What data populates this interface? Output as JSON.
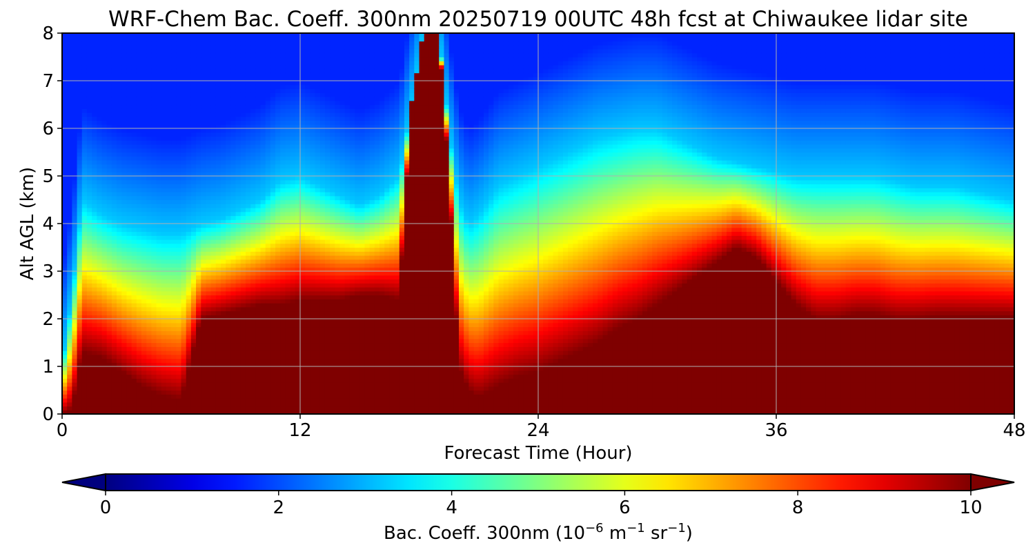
{
  "chart_data": {
    "type": "heatmap",
    "title": "WRF-Chem Bac. Coeff. 300nm  20250719 00UTC 48h fcst at Chiwaukee lidar site",
    "xlabel": "Forecast Time (Hour)",
    "ylabel": "Alt AGL (km)",
    "xlim": [
      0,
      48
    ],
    "ylim": [
      0,
      8
    ],
    "x_ticks": [
      0,
      12,
      24,
      36,
      48
    ],
    "y_ticks": [
      0,
      1,
      2,
      3,
      4,
      5,
      6,
      7,
      8
    ],
    "grid": true,
    "colormap": "jet",
    "colorbar": {
      "orientation": "horizontal",
      "placement": "bottom",
      "label_main": "Bac. Coeff. 300nm  (10",
      "label_exp1": "−6",
      "label_mid": " m",
      "label_exp2": "−1",
      "label_end": " sr",
      "label_exp3": "−1",
      "label_close": ")",
      "range": [
        0,
        10
      ],
      "extend": "both",
      "ticks": [
        0,
        2,
        4,
        6,
        8,
        10
      ]
    },
    "x_hours": [
      0,
      0.5,
      1,
      2,
      3,
      4,
      5,
      6,
      7,
      8,
      9,
      10,
      11,
      12,
      13,
      14,
      15,
      16,
      17,
      17.6,
      18.2,
      18.6,
      19,
      19.5,
      20,
      20.5,
      21,
      22,
      23,
      24,
      25,
      26,
      27,
      28,
      29,
      30,
      31,
      32,
      33,
      34,
      35,
      36,
      37,
      38,
      39,
      40,
      41,
      42,
      43,
      44,
      45,
      46,
      47,
      48
    ],
    "bottom_layer_top_km": [
      0.0,
      0.1,
      1.3,
      1.2,
      0.9,
      0.6,
      0.4,
      0.3,
      2.0,
      2.1,
      2.2,
      2.3,
      2.3,
      2.4,
      2.4,
      2.4,
      2.5,
      2.5,
      2.4,
      6.5,
      8.0,
      8.0,
      8.0,
      5.0,
      1.0,
      0.5,
      0.35,
      0.6,
      0.8,
      0.9,
      1.1,
      1.3,
      1.5,
      1.8,
      2.0,
      2.3,
      2.6,
      2.9,
      3.2,
      3.5,
      3.3,
      2.8,
      2.3,
      2.0,
      2.0,
      2.1,
      2.1,
      2.0,
      2.0,
      2.05,
      2.05,
      2.05,
      2.05,
      2.05
    ],
    "upper_layer_top_km": [
      1.0,
      2.5,
      4.5,
      4.2,
      4.0,
      3.9,
      3.8,
      3.8,
      4.0,
      4.1,
      4.3,
      4.5,
      4.9,
      5.0,
      4.8,
      4.6,
      4.4,
      4.6,
      5.0,
      6.5,
      8.0,
      8.0,
      8.0,
      6.0,
      4.5,
      4.0,
      4.2,
      4.8,
      5.0,
      5.2,
      5.4,
      5.6,
      5.8,
      5.9,
      6.0,
      6.0,
      5.8,
      5.6,
      5.4,
      5.3,
      5.2,
      5.1,
      5.0,
      5.0,
      5.0,
      5.0,
      5.0,
      4.9,
      4.8,
      4.8,
      4.8,
      4.7,
      4.6,
      4.5
    ],
    "surface_value": 10,
    "free_troposphere_value": 1.6,
    "plume_peak_value": 10
  }
}
